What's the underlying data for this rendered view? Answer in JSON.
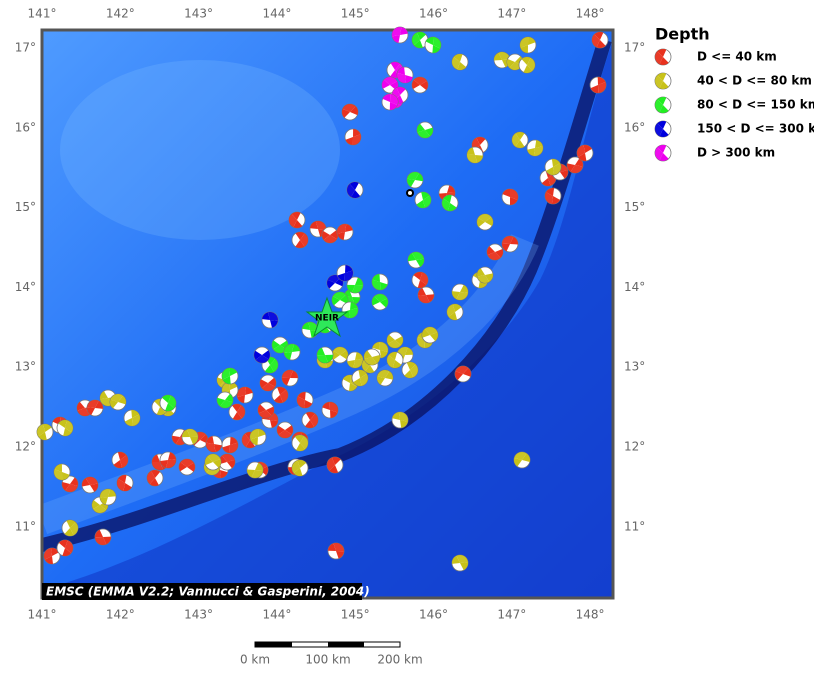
{
  "map": {
    "lon_labels": [
      "141°",
      "142°",
      "143°",
      "144°",
      "145°",
      "146°",
      "147°",
      "148°"
    ],
    "lat_labels": [
      "17°",
      "16°",
      "15°",
      "14°",
      "13°",
      "12°",
      "11°"
    ],
    "station": "NEIR",
    "credit": "EMSC (EMMA V2.2; Vannucci & Gasperini, 2004)",
    "legend": {
      "title": "Depth",
      "items": [
        {
          "label": "D <= 40 km",
          "color": "#e8321e"
        },
        {
          "label": "40 < D <= 80 km",
          "color": "#c8c21a"
        },
        {
          "label": "80 < D <= 150 km",
          "color": "#22ee22"
        },
        {
          "label": "150 < D <= 300 km",
          "color": "#0000dd"
        },
        {
          "label": "D > 300 km",
          "color": "#ee00ee"
        }
      ]
    },
    "scale_bar": [
      "0 km",
      "100 km",
      "200 km"
    ]
  }
}
